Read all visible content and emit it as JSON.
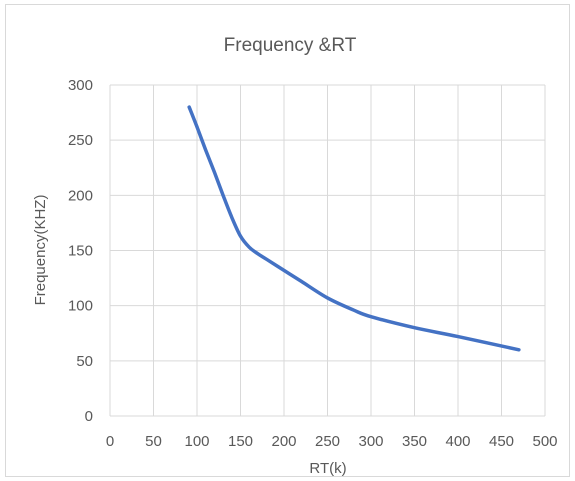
{
  "chart_data": {
    "type": "scatter",
    "title": "Frequency &RT",
    "xlabel": "RT(k)",
    "ylabel": "Frequency(KHZ)",
    "xlim": [
      0,
      500
    ],
    "ylim": [
      0,
      300
    ],
    "x_ticks": [
      0,
      50,
      100,
      150,
      200,
      250,
      300,
      350,
      400,
      450,
      500
    ],
    "y_ticks": [
      0,
      50,
      100,
      150,
      200,
      250,
      300
    ],
    "grid": true,
    "legend": "none",
    "series": [
      {
        "color": "#4472c4",
        "x": [
          91,
          100,
          110,
          120,
          130,
          140,
          150,
          160,
          170,
          180,
          200,
          220,
          250,
          280,
          300,
          350,
          400,
          470
        ],
        "y": [
          280,
          262,
          241,
          221,
          200,
          180,
          163,
          153,
          147,
          142,
          132,
          122,
          107,
          96,
          90,
          80,
          72,
          60
        ]
      }
    ]
  }
}
